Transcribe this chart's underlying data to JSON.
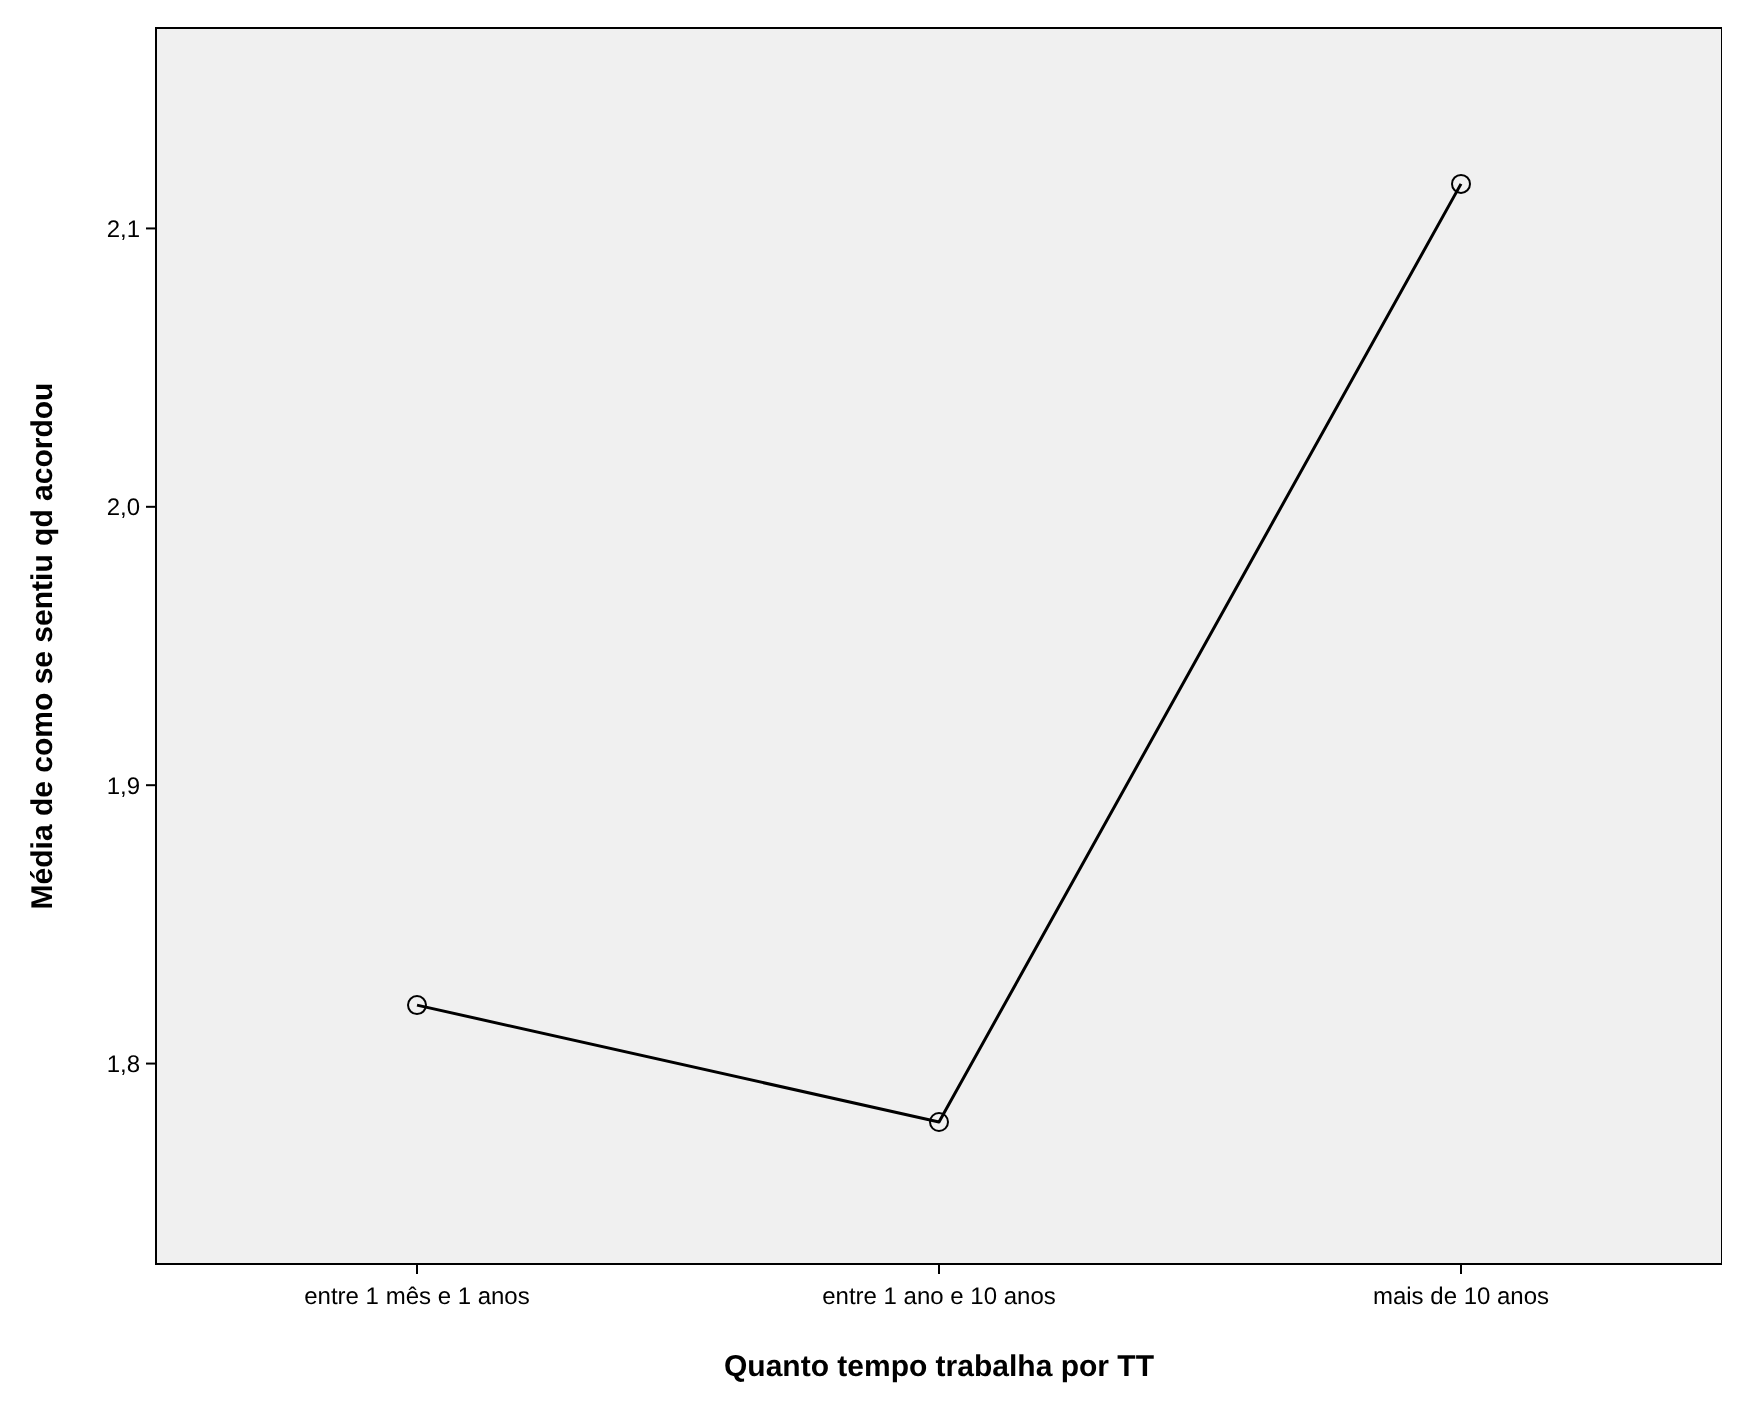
{
  "chart_data": {
    "type": "line",
    "xlabel": "Quanto tempo trabalha por TT",
    "ylabel": "Média de como se sentiu qd acordou",
    "categories": [
      "entre 1 mês e 1 anos",
      "entre 1 ano e 10 anos",
      "mais de 10 anos"
    ],
    "series": [
      {
        "color": "#000000",
        "values": [
          1.821,
          1.779,
          2.116
        ]
      }
    ],
    "ylim": [
      1.728,
      2.172
    ],
    "yticks": [
      {
        "value": 1.8,
        "label": "1,8"
      },
      {
        "value": 1.9,
        "label": "1,9"
      },
      {
        "value": 2.0,
        "label": "2,0"
      },
      {
        "value": 2.1,
        "label": "2,1"
      }
    ],
    "grid": false,
    "marker": "circle",
    "line_style": "solid"
  }
}
